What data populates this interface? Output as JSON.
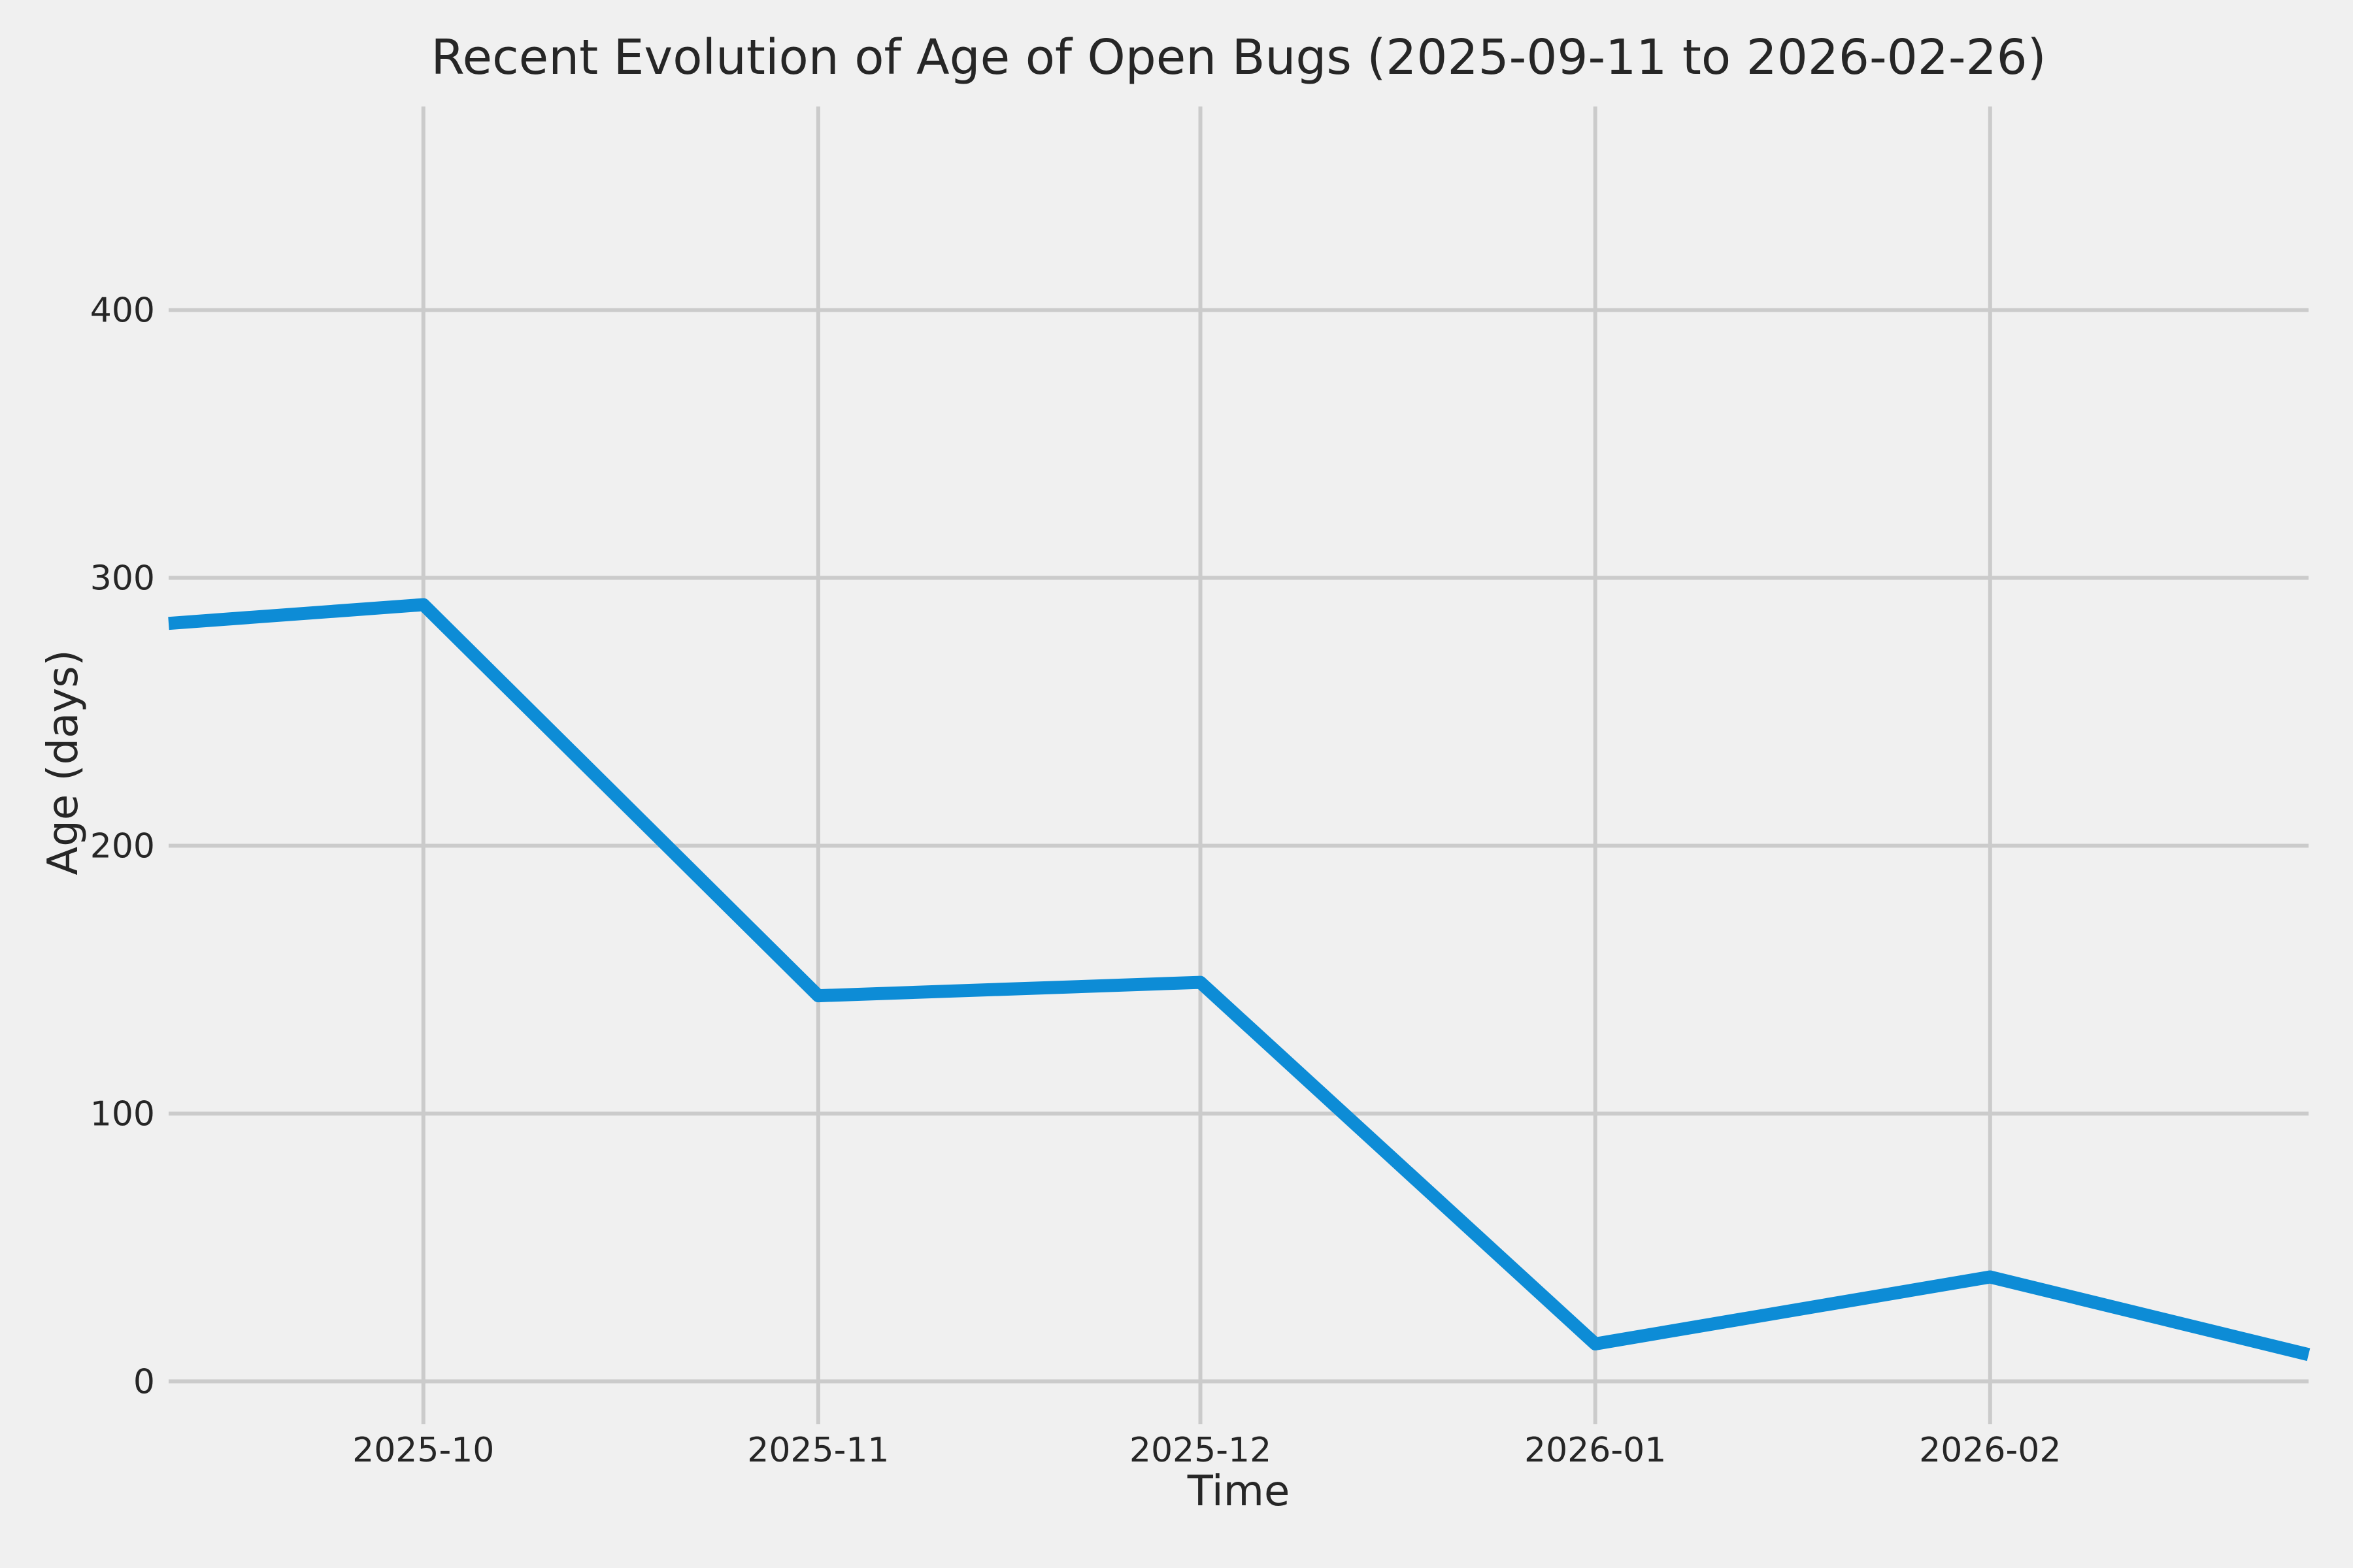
{
  "figure": {
    "background_color": "#f0f0f0",
    "text_color": "#262626"
  },
  "chart_data": {
    "type": "line",
    "title": "Recent Evolution of Age of Open Bugs (2025-09-11 to 2026-02-26)",
    "xlabel": "Time",
    "ylabel": "Age (days)",
    "grid": true,
    "legend": "none",
    "grid_color": "#cbcbcb",
    "line_color": "#0d8cd6",
    "line_width": 20,
    "x_start": "2025-09-11",
    "x_end": "2026-02-26",
    "ylim": [
      -16,
      476
    ],
    "y_ticks": [
      0,
      100,
      200,
      300,
      400
    ],
    "x_ticks": [
      {
        "date": "2025-10-01",
        "label": "2025-10"
      },
      {
        "date": "2025-11-01",
        "label": "2025-11"
      },
      {
        "date": "2025-12-01",
        "label": "2025-12"
      },
      {
        "date": "2026-01-01",
        "label": "2026-01"
      },
      {
        "date": "2026-02-01",
        "label": "2026-02"
      }
    ],
    "points": [
      {
        "date": "2025-09-11",
        "value": 283
      },
      {
        "date": "2025-10-01",
        "value": 290
      },
      {
        "date": "2025-11-01",
        "value": 144
      },
      {
        "date": "2025-12-01",
        "value": 149
      },
      {
        "date": "2026-01-01",
        "value": 14
      },
      {
        "date": "2026-02-01",
        "value": 39
      },
      {
        "date": "2026-02-26",
        "value": 10
      }
    ]
  }
}
